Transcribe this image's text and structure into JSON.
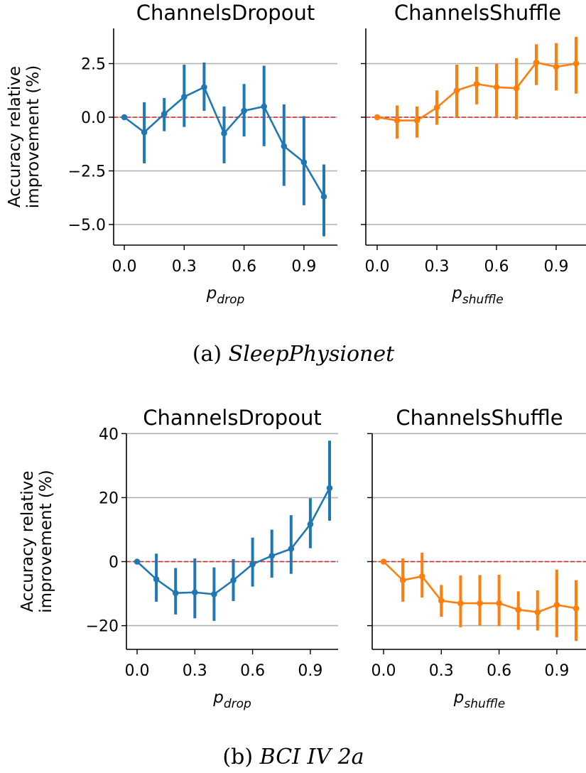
{
  "figure": {
    "caption_a": {
      "label": "(a)",
      "name": "SleepPhysionet"
    },
    "caption_b": {
      "label": "(b)",
      "name": "BCI IV 2a"
    }
  },
  "colors": {
    "dropout": "#1f77b4",
    "shuffle": "#ff7f0e",
    "baseline": "#d62728",
    "grid": "#b0b0b0"
  },
  "chart_data": [
    {
      "type": "line",
      "title": "ChannelsDropout",
      "panel": "a",
      "ylabel": [
        "Accuracy relative",
        "improvement (%)"
      ],
      "xlabel": {
        "main": "p",
        "sub": "drop"
      },
      "x": [
        0.0,
        0.1,
        0.2,
        0.3,
        0.4,
        0.5,
        0.6,
        0.7,
        0.8,
        0.9,
        1.0
      ],
      "xticks": [
        "0.0",
        "0.3",
        "0.6",
        "0.9"
      ],
      "xtick_values": [
        0.0,
        0.3,
        0.6,
        0.9
      ],
      "yticks": [
        "2.5",
        "0.0",
        "−2.5",
        "−5.0"
      ],
      "ytick_values": [
        2.5,
        0.0,
        -2.5,
        -5.0
      ],
      "ylim": [
        -6.0,
        4.1
      ],
      "grid": "horizontal",
      "baseline": 0,
      "series": [
        {
          "color": "#1f77b4",
          "values": [
            0.0,
            -0.7,
            0.15,
            0.95,
            1.4,
            -0.75,
            0.3,
            0.5,
            -1.35,
            -2.1,
            -3.7
          ],
          "err_low": [
            0.0,
            -2.15,
            -0.65,
            -0.45,
            0.3,
            -2.15,
            -0.9,
            -1.35,
            -3.2,
            -4.1,
            -5.55
          ],
          "err_high": [
            0.0,
            0.7,
            0.9,
            2.45,
            2.55,
            0.5,
            1.55,
            2.4,
            0.6,
            0.05,
            -2.2
          ]
        }
      ]
    },
    {
      "type": "line",
      "title": "ChannelsShuffle",
      "panel": "a",
      "xlabel": {
        "main": "p",
        "sub": "shuffle"
      },
      "x": [
        0.0,
        0.1,
        0.2,
        0.3,
        0.4,
        0.5,
        0.6,
        0.7,
        0.8,
        0.9,
        1.0
      ],
      "xticks": [
        "0.0",
        "0.3",
        "0.6",
        "0.9"
      ],
      "xtick_values": [
        0.0,
        0.3,
        0.6,
        0.9
      ],
      "ylim": [
        -6.0,
        4.1
      ],
      "grid": "horizontal",
      "baseline": 0,
      "series": [
        {
          "color": "#ff7f0e",
          "values": [
            0.0,
            -0.15,
            -0.15,
            0.45,
            1.25,
            1.55,
            1.4,
            1.35,
            2.55,
            2.35,
            2.5
          ],
          "err_low": [
            0.0,
            -1.0,
            -0.95,
            -0.35,
            0.0,
            0.6,
            0.0,
            -0.1,
            1.5,
            1.25,
            1.1
          ],
          "err_high": [
            0.0,
            0.55,
            0.5,
            1.25,
            2.45,
            2.35,
            2.5,
            2.75,
            3.4,
            3.45,
            3.75
          ]
        }
      ]
    },
    {
      "type": "line",
      "title": "ChannelsDropout",
      "panel": "b",
      "ylabel": [
        "Accuracy relative",
        "improvement (%)"
      ],
      "xlabel": {
        "main": "p",
        "sub": "drop"
      },
      "x": [
        0.0,
        0.1,
        0.2,
        0.3,
        0.4,
        0.5,
        0.6,
        0.7,
        0.8,
        0.9,
        1.0
      ],
      "xticks": [
        "0.0",
        "0.3",
        "0.6",
        "0.9"
      ],
      "xtick_values": [
        0.0,
        0.3,
        0.6,
        0.9
      ],
      "yticks": [
        "40",
        "20",
        "0",
        "−20"
      ],
      "ytick_values": [
        40,
        20,
        0,
        -20
      ],
      "ylim": [
        -26.5,
        42.0
      ],
      "grid": "horizontal",
      "baseline": 0,
      "series": [
        {
          "color": "#1f77b4",
          "values": [
            0.0,
            -5.5,
            -9.8,
            -9.6,
            -10.2,
            -5.8,
            -0.8,
            1.8,
            4.0,
            11.7,
            23.0
          ],
          "err_low": [
            0.0,
            -12.5,
            -16.5,
            -17.7,
            -18.5,
            -12.3,
            -7.8,
            -5.0,
            -3.8,
            4.2,
            12.8
          ],
          "err_high": [
            0.0,
            2.5,
            -2.0,
            1.0,
            -1.8,
            0.8,
            7.5,
            10.0,
            14.5,
            19.8,
            37.8
          ]
        }
      ]
    },
    {
      "type": "line",
      "title": "ChannelsShuffle",
      "panel": "b",
      "xlabel": {
        "main": "p",
        "sub": "shuffle"
      },
      "x": [
        0.0,
        0.1,
        0.2,
        0.3,
        0.4,
        0.5,
        0.6,
        0.7,
        0.8,
        0.9,
        1.0
      ],
      "xticks": [
        "0.0",
        "0.3",
        "0.6",
        "0.9"
      ],
      "xtick_values": [
        0.0,
        0.3,
        0.6,
        0.9
      ],
      "ylim": [
        -26.5,
        42.0
      ],
      "grid": "horizontal",
      "baseline": 0,
      "series": [
        {
          "color": "#ff7f0e",
          "values": [
            0.0,
            -5.8,
            -4.6,
            -12.2,
            -13.0,
            -13.0,
            -13.0,
            -15.0,
            -15.8,
            -13.5,
            -14.6
          ],
          "err_low": [
            0.0,
            -12.5,
            -11.2,
            -17.2,
            -20.5,
            -20.0,
            -20.2,
            -21.3,
            -21.5,
            -23.6,
            -24.8
          ],
          "err_high": [
            0.0,
            1.0,
            2.8,
            -7.3,
            -4.3,
            -4.2,
            -4.1,
            -9.3,
            -9.0,
            -2.5,
            -5.8
          ]
        }
      ]
    }
  ]
}
